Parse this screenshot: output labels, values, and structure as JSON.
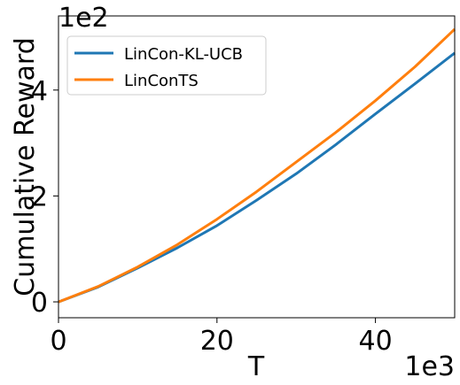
{
  "chart_data": {
    "type": "line",
    "xlabel": "T",
    "ylabel": "Cumulative Reward",
    "x_multiplier": "1e3",
    "y_multiplier": "1e2",
    "xlim": [
      0,
      50
    ],
    "ylim": [
      -0.3,
      5.4
    ],
    "xticks": [
      0,
      20,
      40
    ],
    "yticks": [
      0,
      2,
      4
    ],
    "grid": false,
    "legend_position": "top-left",
    "series": [
      {
        "name": "LinCon-KL-UCB",
        "color": "#1f77b4",
        "x": [
          0,
          5,
          10,
          15,
          20,
          25,
          30,
          35,
          40,
          45,
          50
        ],
        "y": [
          0,
          0.28,
          0.64,
          1.02,
          1.44,
          1.92,
          2.42,
          2.97,
          3.55,
          4.12,
          4.7
        ]
      },
      {
        "name": "LinConTS",
        "color": "#ff7f0e",
        "x": [
          0,
          5,
          10,
          15,
          20,
          25,
          30,
          35,
          40,
          45,
          50
        ],
        "y": [
          0,
          0.29,
          0.66,
          1.08,
          1.56,
          2.08,
          2.64,
          3.2,
          3.8,
          4.44,
          5.15
        ]
      }
    ]
  }
}
